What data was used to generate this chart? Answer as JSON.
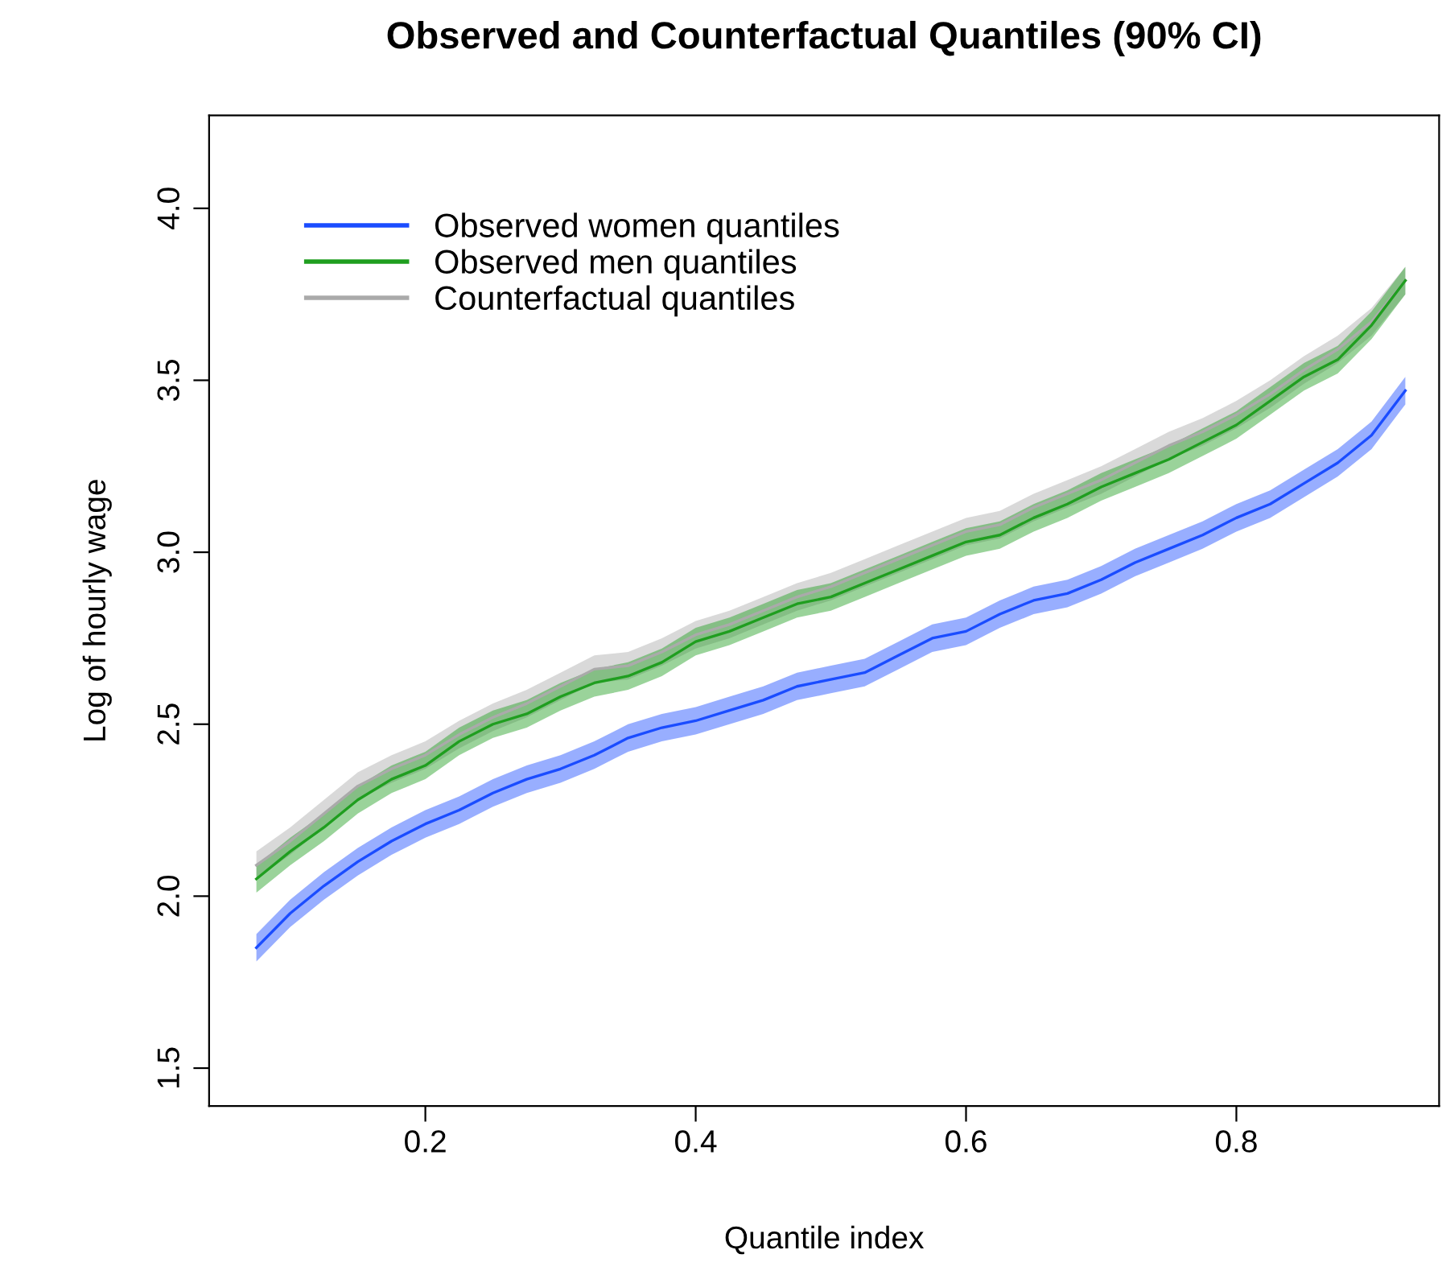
{
  "chart_data": {
    "type": "line",
    "title": "Observed and Counterfactual Quantiles (90% CI)",
    "xlabel": "Quantile index",
    "ylabel": "Log of hourly wage",
    "x": [
      0.075,
      0.1,
      0.125,
      0.15,
      0.175,
      0.2,
      0.225,
      0.25,
      0.275,
      0.3,
      0.325,
      0.35,
      0.375,
      0.4,
      0.425,
      0.45,
      0.475,
      0.5,
      0.525,
      0.55,
      0.575,
      0.6,
      0.625,
      0.65,
      0.675,
      0.7,
      0.725,
      0.75,
      0.775,
      0.8,
      0.825,
      0.85,
      0.875,
      0.9,
      0.925
    ],
    "series": [
      {
        "name": "Counterfactual quantiles",
        "color": "#aaaaaa",
        "values": [
          2.09,
          2.16,
          2.24,
          2.32,
          2.37,
          2.41,
          2.47,
          2.52,
          2.56,
          2.61,
          2.66,
          2.67,
          2.71,
          2.76,
          2.79,
          2.83,
          2.87,
          2.9,
          2.94,
          2.98,
          3.02,
          3.06,
          3.08,
          3.13,
          3.17,
          3.21,
          3.26,
          3.31,
          3.35,
          3.4,
          3.46,
          3.53,
          3.59,
          3.67,
          3.79
        ],
        "lower": [
          2.05,
          2.12,
          2.2,
          2.28,
          2.33,
          2.37,
          2.43,
          2.48,
          2.52,
          2.57,
          2.62,
          2.63,
          2.67,
          2.72,
          2.75,
          2.79,
          2.83,
          2.86,
          2.9,
          2.94,
          2.98,
          3.02,
          3.04,
          3.09,
          3.13,
          3.17,
          3.22,
          3.27,
          3.31,
          3.36,
          3.42,
          3.49,
          3.55,
          3.63,
          3.75
        ],
        "upper": [
          2.13,
          2.2,
          2.28,
          2.36,
          2.41,
          2.45,
          2.51,
          2.56,
          2.6,
          2.65,
          2.7,
          2.71,
          2.75,
          2.8,
          2.83,
          2.87,
          2.91,
          2.94,
          2.98,
          3.02,
          3.06,
          3.1,
          3.12,
          3.17,
          3.21,
          3.25,
          3.3,
          3.35,
          3.39,
          3.44,
          3.5,
          3.57,
          3.63,
          3.71,
          3.83
        ]
      },
      {
        "name": "Observed men quantiles",
        "color": "#1f9e1f",
        "values": [
          2.05,
          2.13,
          2.2,
          2.28,
          2.34,
          2.38,
          2.45,
          2.5,
          2.53,
          2.58,
          2.62,
          2.64,
          2.68,
          2.74,
          2.77,
          2.81,
          2.85,
          2.87,
          2.91,
          2.95,
          2.99,
          3.03,
          3.05,
          3.1,
          3.14,
          3.19,
          3.23,
          3.27,
          3.32,
          3.37,
          3.44,
          3.51,
          3.56,
          3.66,
          3.79
        ],
        "lower": [
          2.01,
          2.09,
          2.16,
          2.24,
          2.3,
          2.34,
          2.41,
          2.46,
          2.49,
          2.54,
          2.58,
          2.6,
          2.64,
          2.7,
          2.73,
          2.77,
          2.81,
          2.83,
          2.87,
          2.91,
          2.95,
          2.99,
          3.01,
          3.06,
          3.1,
          3.15,
          3.19,
          3.23,
          3.28,
          3.33,
          3.4,
          3.47,
          3.52,
          3.62,
          3.75
        ],
        "upper": [
          2.09,
          2.17,
          2.24,
          2.32,
          2.38,
          2.42,
          2.49,
          2.54,
          2.57,
          2.62,
          2.66,
          2.68,
          2.72,
          2.78,
          2.81,
          2.85,
          2.89,
          2.91,
          2.95,
          2.99,
          3.03,
          3.07,
          3.09,
          3.14,
          3.18,
          3.23,
          3.27,
          3.31,
          3.36,
          3.41,
          3.48,
          3.55,
          3.6,
          3.7,
          3.83
        ]
      },
      {
        "name": "Observed women quantiles",
        "color": "#1a4cff",
        "values": [
          1.85,
          1.95,
          2.03,
          2.1,
          2.16,
          2.21,
          2.25,
          2.3,
          2.34,
          2.37,
          2.41,
          2.46,
          2.49,
          2.51,
          2.54,
          2.57,
          2.61,
          2.63,
          2.65,
          2.7,
          2.75,
          2.77,
          2.82,
          2.86,
          2.88,
          2.92,
          2.97,
          3.01,
          3.05,
          3.1,
          3.14,
          3.2,
          3.26,
          3.34,
          3.47
        ],
        "lower": [
          1.81,
          1.91,
          1.99,
          2.06,
          2.12,
          2.17,
          2.21,
          2.26,
          2.3,
          2.33,
          2.37,
          2.42,
          2.45,
          2.47,
          2.5,
          2.53,
          2.57,
          2.59,
          2.61,
          2.66,
          2.71,
          2.73,
          2.78,
          2.82,
          2.84,
          2.88,
          2.93,
          2.97,
          3.01,
          3.06,
          3.1,
          3.16,
          3.22,
          3.3,
          3.43
        ],
        "upper": [
          1.89,
          1.99,
          2.07,
          2.14,
          2.2,
          2.25,
          2.29,
          2.34,
          2.38,
          2.41,
          2.45,
          2.5,
          2.53,
          2.55,
          2.58,
          2.61,
          2.65,
          2.67,
          2.69,
          2.74,
          2.79,
          2.81,
          2.86,
          2.9,
          2.92,
          2.96,
          3.01,
          3.05,
          3.09,
          3.14,
          3.18,
          3.24,
          3.3,
          3.38,
          3.51
        ]
      }
    ],
    "xlim": [
      0.04,
      0.95
    ],
    "ylim": [
      1.39,
      4.27
    ],
    "xticks": [
      {
        "value": 0.2,
        "label": "0.2"
      },
      {
        "value": 0.4,
        "label": "0.4"
      },
      {
        "value": 0.6,
        "label": "0.6"
      },
      {
        "value": 0.8,
        "label": "0.8"
      }
    ],
    "yticks": [
      {
        "value": 1.5,
        "label": "1.5"
      },
      {
        "value": 2.0,
        "label": "2.0"
      },
      {
        "value": 2.5,
        "label": "2.5"
      },
      {
        "value": 3.0,
        "label": "3.0"
      },
      {
        "value": 3.5,
        "label": "3.5"
      },
      {
        "value": 4.0,
        "label": "4.0"
      }
    ],
    "grid": false,
    "legend": "top left",
    "line_style": "solid",
    "marker": "none"
  }
}
